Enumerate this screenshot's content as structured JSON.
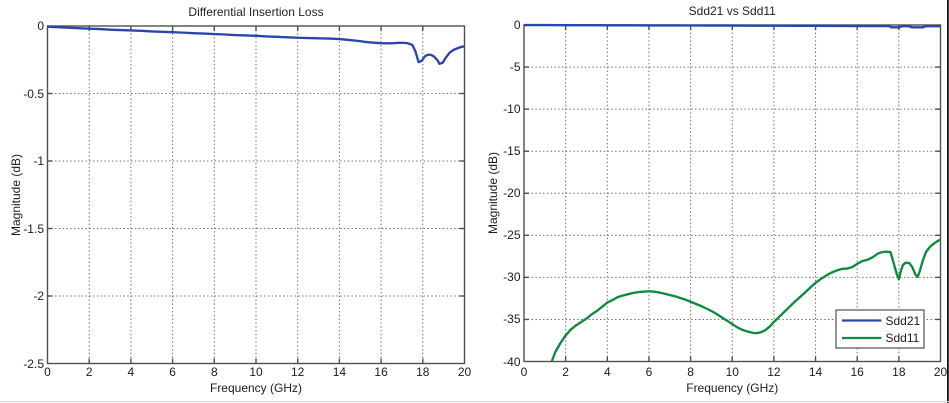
{
  "page": {
    "background": "#ffffff",
    "right_edge_line_color": "#131313",
    "bottom_edge_line_color": "#d9d9d9",
    "axis_color": "#4f4f4f",
    "grid_color": "#6b6b6b",
    "text_color": "#1c1c1c"
  },
  "chart_data": [
    {
      "type": "line",
      "title": "Differential Insertion Loss",
      "xlabel": "Frequency (GHz)",
      "ylabel": "Magnitude (dB)",
      "xlim": [
        0,
        20
      ],
      "ylim": [
        -2.5,
        0
      ],
      "xticks": [
        0,
        2,
        4,
        6,
        8,
        10,
        12,
        14,
        16,
        18,
        20
      ],
      "xtick_labels": [
        "0",
        "2",
        "4",
        "6",
        "8",
        "10",
        "12",
        "14",
        "16",
        "18",
        "20"
      ],
      "yticks": [
        0,
        -0.5,
        -1,
        -1.5,
        -2,
        -2.5
      ],
      "ytick_labels": [
        "0",
        "-0.5",
        "-1",
        "-1.5",
        "-2",
        "-2.5"
      ],
      "grid": true,
      "grid_style": "dotted",
      "legend": null,
      "series": [
        {
          "name": "Differential Insertion Loss",
          "color": "#2a46aa",
          "x": [
            0,
            0.5,
            1,
            1.5,
            2,
            2.5,
            3,
            3.5,
            4,
            4.5,
            5,
            5.5,
            6,
            6.5,
            7,
            7.5,
            8,
            8.5,
            9,
            9.5,
            10,
            10.5,
            11,
            11.5,
            12,
            12.5,
            13,
            13.5,
            14,
            14.5,
            15,
            15.25,
            15.5,
            16,
            16.3,
            16.6,
            16.8,
            17,
            17.25,
            17.5,
            17.65,
            17.8,
            17.95,
            18.1,
            18.25,
            18.4,
            18.55,
            18.7,
            18.8,
            18.95,
            19.1,
            19.3,
            19.5,
            19.7,
            19.85,
            20
          ],
          "y": [
            -0.005,
            -0.009,
            -0.013,
            -0.016,
            -0.02,
            -0.023,
            -0.027,
            -0.03,
            -0.033,
            -0.036,
            -0.04,
            -0.043,
            -0.046,
            -0.049,
            -0.053,
            -0.056,
            -0.06,
            -0.063,
            -0.067,
            -0.07,
            -0.073,
            -0.077,
            -0.08,
            -0.084,
            -0.087,
            -0.089,
            -0.091,
            -0.093,
            -0.097,
            -0.104,
            -0.112,
            -0.118,
            -0.122,
            -0.127,
            -0.128,
            -0.127,
            -0.125,
            -0.124,
            -0.127,
            -0.14,
            -0.19,
            -0.268,
            -0.258,
            -0.225,
            -0.212,
            -0.214,
            -0.228,
            -0.252,
            -0.28,
            -0.272,
            -0.235,
            -0.195,
            -0.175,
            -0.163,
            -0.155,
            -0.15
          ]
        }
      ]
    },
    {
      "type": "line",
      "title": "Sdd21 vs Sdd11",
      "xlabel": "Frequency (GHz)",
      "ylabel": "Magnitude (dB)",
      "xlim": [
        0,
        20
      ],
      "ylim": [
        -40,
        0
      ],
      "xticks": [
        0,
        2,
        4,
        6,
        8,
        10,
        12,
        14,
        16,
        18,
        20
      ],
      "xtick_labels": [
        "0",
        "2",
        "4",
        "6",
        "8",
        "10",
        "12",
        "14",
        "16",
        "18",
        "20"
      ],
      "yticks": [
        0,
        -5,
        -10,
        -15,
        -20,
        -25,
        -30,
        -35,
        -40
      ],
      "ytick_labels": [
        "0",
        "-5",
        "-10",
        "-15",
        "-20",
        "-25",
        "-30",
        "-35",
        "-40"
      ],
      "grid": true,
      "grid_style": "dotted",
      "legend": {
        "position": "bottom-right",
        "entries": [
          "Sdd21",
          "Sdd11"
        ]
      },
      "series": [
        {
          "name": "Sdd21",
          "color": "#2a46aa",
          "x": [
            0,
            1,
            2,
            3,
            4,
            5,
            6,
            7,
            8,
            9,
            10,
            11,
            12,
            13,
            14,
            15,
            15.25,
            16,
            17,
            17.3,
            17.55,
            17.63,
            17.7,
            18.02,
            18.1,
            18.16,
            18.45,
            18.55,
            18.62,
            19.08,
            19.16,
            19.25,
            19.5,
            19.7,
            20
          ],
          "y": [
            -0.005,
            -0.013,
            -0.02,
            -0.027,
            -0.033,
            -0.04,
            -0.046,
            -0.053,
            -0.06,
            -0.067,
            -0.073,
            -0.08,
            -0.087,
            -0.091,
            -0.097,
            -0.112,
            -0.118,
            -0.127,
            -0.124,
            -0.127,
            -0.13,
            -0.27,
            -0.275,
            -0.275,
            -0.2,
            -0.135,
            -0.135,
            -0.2,
            -0.27,
            -0.275,
            -0.27,
            -0.16,
            -0.145,
            -0.14,
            -0.135
          ]
        },
        {
          "name": "Sdd11",
          "color": "#0f8a40",
          "x": [
            1.33,
            1.5,
            1.75,
            2,
            2.25,
            2.5,
            2.75,
            3,
            3.25,
            3.5,
            3.75,
            4,
            4.25,
            4.5,
            4.75,
            5,
            5.25,
            5.5,
            5.75,
            6,
            6.25,
            6.5,
            6.75,
            7,
            7.25,
            7.5,
            7.75,
            8,
            8.25,
            8.5,
            8.75,
            9,
            9.25,
            9.5,
            9.75,
            10,
            10.25,
            10.5,
            10.75,
            11,
            11.2,
            11.4,
            11.6,
            11.8,
            12,
            12.25,
            12.5,
            12.75,
            13,
            13.25,
            13.5,
            13.75,
            14,
            14.25,
            14.5,
            14.75,
            15,
            15.25,
            15.5,
            15.75,
            16,
            16.25,
            16.5,
            16.75,
            17,
            17.2,
            17.4,
            17.6,
            17.75,
            17.9,
            18,
            18.1,
            18.2,
            18.35,
            18.5,
            18.65,
            18.8,
            18.9,
            19,
            19.15,
            19.3,
            19.5,
            19.7,
            19.85,
            20
          ],
          "y": [
            -40,
            -38.9,
            -37.8,
            -36.9,
            -36.2,
            -35.7,
            -35.3,
            -34.9,
            -34.4,
            -34,
            -33.5,
            -33,
            -32.7,
            -32.35,
            -32.15,
            -32,
            -31.85,
            -31.75,
            -31.7,
            -31.65,
            -31.7,
            -31.8,
            -31.95,
            -32.1,
            -32.25,
            -32.45,
            -32.65,
            -32.9,
            -33.15,
            -33.4,
            -33.7,
            -34,
            -34.35,
            -34.75,
            -35.15,
            -35.55,
            -35.95,
            -36.25,
            -36.45,
            -36.6,
            -36.62,
            -36.5,
            -36.25,
            -35.85,
            -35.3,
            -34.7,
            -34.1,
            -33.5,
            -32.9,
            -32.35,
            -31.8,
            -31.2,
            -30.65,
            -30.2,
            -29.8,
            -29.45,
            -29.2,
            -29,
            -28.95,
            -28.8,
            -28.4,
            -28.05,
            -27.9,
            -27.6,
            -27.15,
            -27,
            -26.95,
            -27,
            -28.3,
            -29.6,
            -30.2,
            -29.2,
            -28.5,
            -28.25,
            -28.3,
            -28.8,
            -29.7,
            -29.95,
            -29.3,
            -28,
            -27,
            -26.35,
            -25.95,
            -25.7,
            -25.5
          ]
        }
      ]
    }
  ]
}
